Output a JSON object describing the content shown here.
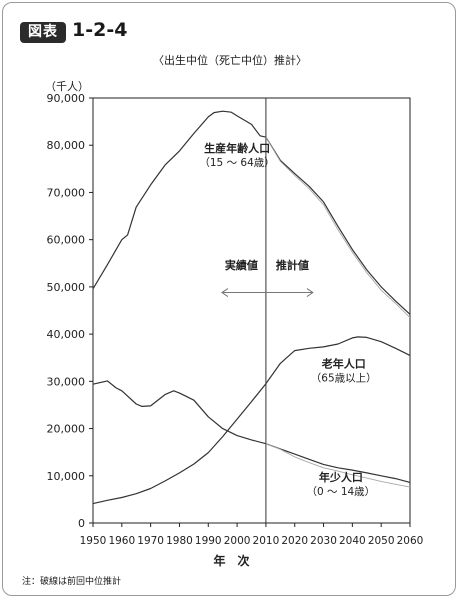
{
  "figure": {
    "badge": "図表",
    "number": "1-2-4",
    "title": "〈出生中位（死亡中位）推計〉",
    "note": "注：破線は前回中位推計"
  },
  "chart_data": {
    "type": "line",
    "title": "〈出生中位（死亡中位）推計〉",
    "unit": "（千人）",
    "xlabel": "年　次",
    "ylabel": "",
    "xlim": [
      1950,
      2060
    ],
    "ylim": [
      0,
      90000
    ],
    "x_ticks": [
      1950,
      1960,
      1970,
      1980,
      1990,
      2000,
      2010,
      2020,
      2030,
      2040,
      2050,
      2060
    ],
    "y_ticks": [
      0,
      10000,
      20000,
      30000,
      40000,
      50000,
      60000,
      70000,
      80000,
      90000
    ],
    "y_tick_labels": [
      "0",
      "10,000",
      "20,000",
      "30,000",
      "40,000",
      "50,000",
      "60,000",
      "70,000",
      "80,000",
      "90,000"
    ],
    "divider_year": 2010,
    "divider_labels": {
      "left": "実績値",
      "right": "推計値"
    },
    "grid": false,
    "series": [
      {
        "name": "生産年齢人口",
        "sub": "（15 ～ 64歳）",
        "style": "solid",
        "x": [
          1950,
          1955,
          1960,
          1962,
          1965,
          1970,
          1975,
          1980,
          1985,
          1990,
          1992,
          1995,
          1998,
          2000,
          2005,
          2008,
          2010,
          2015,
          2020,
          2025,
          2030,
          2035,
          2040,
          2045,
          2050,
          2055,
          2060
        ],
        "y": [
          49600,
          54700,
          60000,
          61000,
          66900,
          71600,
          75800,
          78800,
          82500,
          86000,
          86900,
          87200,
          87000,
          86200,
          84400,
          82000,
          81700,
          76800,
          74000,
          71300,
          68000,
          62800,
          57900,
          53600,
          50000,
          47000,
          44200
        ]
      },
      {
        "name": "老年人口",
        "sub": "（65歳以上）",
        "style": "solid",
        "x": [
          1950,
          1955,
          1960,
          1965,
          1970,
          1975,
          1980,
          1985,
          1990,
          1995,
          2000,
          2005,
          2010,
          2015,
          2020,
          2025,
          2030,
          2035,
          2040,
          2042,
          2045,
          2050,
          2055,
          2060
        ],
        "y": [
          4100,
          4800,
          5400,
          6200,
          7300,
          8900,
          10600,
          12500,
          14900,
          18300,
          22000,
          25700,
          29500,
          33800,
          36500,
          37000,
          37300,
          37900,
          39200,
          39400,
          39300,
          38400,
          37000,
          35500
        ]
      },
      {
        "name": "年少人口",
        "sub": "（0 ～ 14歳）",
        "style": "solid",
        "x": [
          1950,
          1955,
          1958,
          1960,
          1965,
          1967,
          1970,
          1975,
          1978,
          1980,
          1985,
          1990,
          1995,
          2000,
          2005,
          2010,
          2015,
          2020,
          2025,
          2030,
          2035,
          2040,
          2045,
          2050,
          2055,
          2060
        ],
        "y": [
          29400,
          30100,
          28600,
          28000,
          25200,
          24700,
          24800,
          27200,
          28000,
          27500,
          26000,
          22500,
          20000,
          18500,
          17600,
          16800,
          15700,
          14600,
          13500,
          12400,
          11700,
          11200,
          10600,
          10000,
          9400,
          8600
        ]
      },
      {
        "name": "",
        "style": "dashed",
        "x": [
          2010,
          2015,
          2020,
          2025,
          2030,
          2035,
          2040,
          2045,
          2050,
          2055,
          2060
        ],
        "y": [
          81700,
          76600,
          73600,
          70800,
          67400,
          62100,
          57300,
          53000,
          49300,
          46500,
          43500
        ]
      },
      {
        "name": "",
        "style": "dashed",
        "x": [
          2010,
          2015,
          2020,
          2025,
          2030,
          2035,
          2040,
          2045,
          2050,
          2055,
          2060
        ],
        "y": [
          16800,
          15600,
          14000,
          12800,
          11700,
          11000,
          10200,
          9500,
          8800,
          8200,
          7600
        ]
      }
    ]
  }
}
